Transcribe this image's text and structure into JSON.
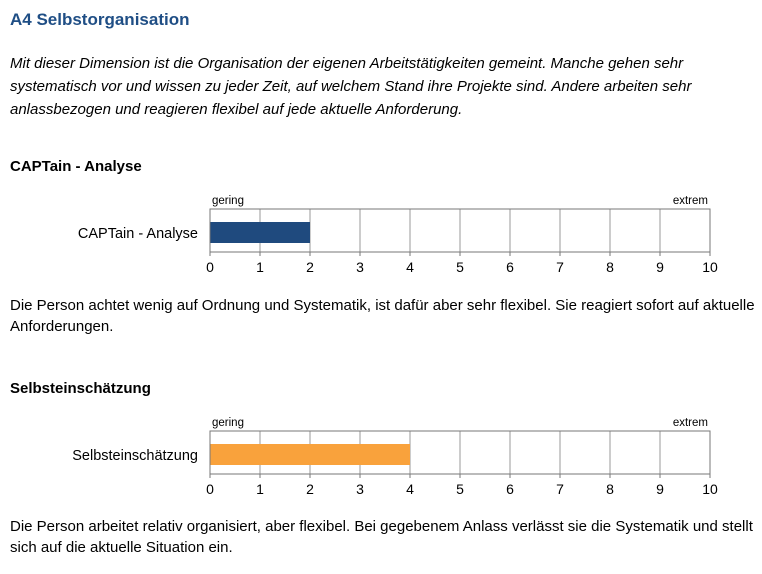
{
  "page": {
    "title": "A4 Selbstorganisation",
    "intro": "Mit dieser Dimension ist die Organisation der eigenen Arbeitstätigkeiten gemeint. Manche gehen sehr systematisch vor und wissen zu jeder Zeit, auf welchem Stand ihre Projekte sind. Andere arbeiten sehr anlassbezogen und reagieren flexibel auf jede aktuelle Anforderung."
  },
  "sections": [
    {
      "heading": "CAPTain - Analyse",
      "description": "Die Person achtet wenig auf Ordnung und Systematik, ist dafür aber sehr flexibel. Sie reagiert sofort auf aktuelle Anforderungen."
    },
    {
      "heading": "Selbsteinschätzung",
      "description": "Die Person arbeitet relativ organisiert, aber flexibel. Bei gegebenem Anlass verlässt sie die Systematik und stellt sich auf die aktuelle Situation ein."
    }
  ],
  "chart_data": [
    {
      "type": "bar",
      "orientation": "horizontal",
      "categories": [
        "CAPTain - Analyse"
      ],
      "values": [
        2
      ],
      "xlim": [
        0,
        10
      ],
      "xticks": [
        0,
        1,
        2,
        3,
        4,
        5,
        6,
        7,
        8,
        9,
        10
      ],
      "low_label": "gering",
      "high_label": "extrem",
      "bar_color": "#1f4a7e",
      "grid": true
    },
    {
      "type": "bar",
      "orientation": "horizontal",
      "categories": [
        "Selbsteinschätzung"
      ],
      "values": [
        4
      ],
      "xlim": [
        0,
        10
      ],
      "xticks": [
        0,
        1,
        2,
        3,
        4,
        5,
        6,
        7,
        8,
        9,
        10
      ],
      "low_label": "gering",
      "high_label": "extrem",
      "bar_color": "#f9a23c",
      "grid": true
    }
  ]
}
